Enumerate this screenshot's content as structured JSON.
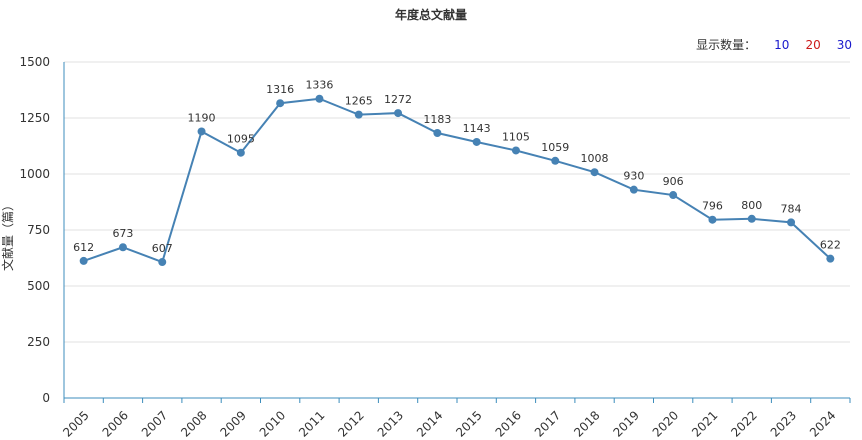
{
  "header": {
    "title": "年度总文献量"
  },
  "display_count": {
    "label": "显示数量：",
    "options": [
      {
        "label": "10",
        "color": "#1a1acc"
      },
      {
        "label": "20",
        "color": "#cc1a1a"
      },
      {
        "label": "30",
        "color": "#1a1acc"
      }
    ]
  },
  "chart_data": {
    "type": "line",
    "title": "年度总文献量",
    "xlabel": "",
    "ylabel": "文献量（篇）",
    "x": [
      "2005",
      "2006",
      "2007",
      "2008",
      "2009",
      "2010",
      "2011",
      "2012",
      "2013",
      "2014",
      "2015",
      "2016",
      "2017",
      "2018",
      "2019",
      "2020",
      "2021",
      "2022",
      "2023",
      "2024"
    ],
    "series": [
      {
        "values": [
          612,
          673,
          607,
          1190,
          1095,
          1316,
          1336,
          1265,
          1272,
          1183,
          1143,
          1105,
          1059,
          1008,
          930,
          906,
          796,
          800,
          784,
          622
        ]
      }
    ],
    "ylim": [
      0,
      1500
    ],
    "yticks": [
      "0",
      "250",
      "500",
      "750",
      "1000",
      "1250",
      "1500"
    ],
    "grid": true,
    "line_color": "#4682b4"
  }
}
